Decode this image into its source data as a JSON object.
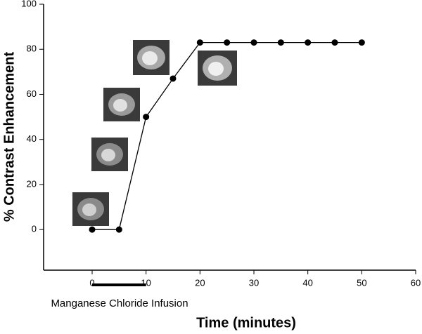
{
  "chart_data": {
    "type": "line",
    "x_label": "Time (minutes)",
    "y_label": "% Contrast Enhancement",
    "x": [
      0,
      5,
      10,
      15,
      20,
      25,
      30,
      35,
      40,
      45,
      50
    ],
    "series": [
      {
        "color": "#000000",
        "values": [
          0,
          0,
          50,
          67,
          83,
          83,
          83,
          83,
          83,
          83,
          83
        ]
      }
    ],
    "xlim": [
      -9,
      60
    ],
    "xticks": [
      0,
      10,
      20,
      30,
      40,
      50,
      60
    ],
    "ylim": [
      -18,
      100
    ],
    "yticks": [
      0,
      20,
      40,
      60,
      80,
      100
    ],
    "annotation": {
      "text": "Manganese Chloride Infusion",
      "start": 0,
      "end": 10
    }
  }
}
